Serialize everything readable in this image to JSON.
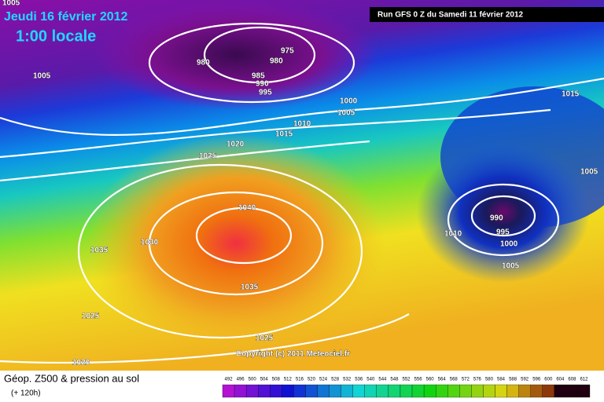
{
  "header": {
    "date": "Jeudi 16 février 2012",
    "time": "1:00 locale",
    "run": "Run GFS 0 Z du Samedi 11 février 2012"
  },
  "isobars": [
    "1005",
    "1005",
    "980",
    "975",
    "980",
    "985",
    "990",
    "995",
    "1000",
    "1005",
    "1015",
    "1010",
    "1015",
    "1020",
    "1025",
    "1005",
    "1040",
    "990",
    "995",
    "1010",
    "1000",
    "1030",
    "1035",
    "1005",
    "1035",
    "1025",
    "1025",
    "1020"
  ],
  "copyright": "Copyright (c) 2011 Meteociel.fr",
  "footer": {
    "title": "Géop. Z500 & pression au sol",
    "lead": "(+ 120h)"
  },
  "scale": [
    492,
    496,
    500,
    504,
    508,
    512,
    516,
    520,
    524,
    528,
    532,
    536,
    540,
    544,
    548,
    552,
    556,
    560,
    564,
    568,
    572,
    576,
    580,
    584,
    588,
    592,
    596,
    600,
    604,
    608,
    612
  ]
}
